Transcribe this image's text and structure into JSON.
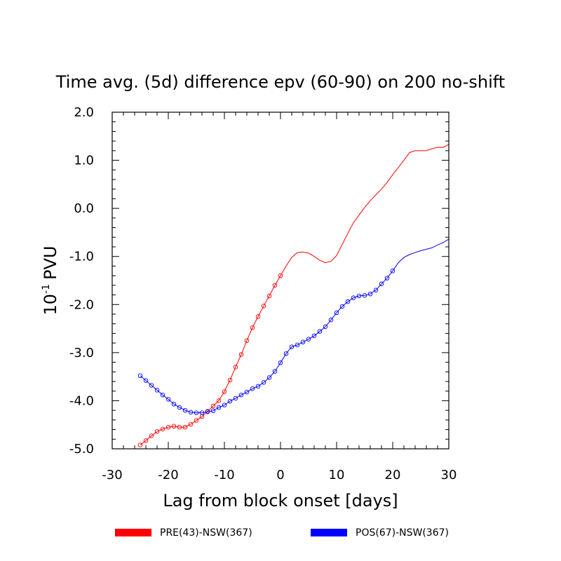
{
  "chart_data": {
    "type": "line",
    "title": "Time avg. (5d)  difference epv (60-90) on 200 no-shift",
    "xlabel": "Lag from block onset [days]",
    "ylabel": "10-1 PVU",
    "ylabel_base": "10",
    "ylabel_exp": "-1",
    "ylabel_unit": "PVU",
    "xlim": [
      -30,
      30
    ],
    "ylim": [
      -5.0,
      2.0
    ],
    "x_ticks": [
      -30,
      -20,
      -10,
      0,
      10,
      20,
      30
    ],
    "x_tick_labels": [
      "-30",
      "-20",
      "-10",
      "0",
      "10",
      "20",
      "30"
    ],
    "y_ticks": [
      -5,
      -4,
      -3,
      -2,
      -1,
      0,
      1,
      2
    ],
    "y_tick_labels": [
      "-5.0",
      "-4.0",
      "-3.0",
      "-2.0",
      "-1.0",
      "0.0",
      "1.0",
      "2.0"
    ],
    "grid": false,
    "legend_position": "bottom",
    "series": [
      {
        "name": "PRE(43)-NSW(367)",
        "color": "#ff0000",
        "marker": "open-circle",
        "marker_x_max": 0,
        "x": [
          -25,
          -24,
          -23,
          -22,
          -21,
          -20,
          -19,
          -18,
          -17,
          -16,
          -15,
          -14,
          -13,
          -12,
          -11,
          -10,
          -9,
          -8,
          -7,
          -6,
          -5,
          -4,
          -3,
          -2,
          -1,
          0,
          1,
          2,
          3,
          4,
          5,
          6,
          7,
          8,
          9,
          10,
          11,
          12,
          13,
          14,
          15,
          16,
          17,
          18,
          19,
          20,
          21,
          22,
          23,
          24,
          25,
          26,
          27,
          28,
          29,
          30
        ],
        "values": [
          -4.92,
          -4.83,
          -4.73,
          -4.64,
          -4.59,
          -4.55,
          -4.53,
          -4.55,
          -4.55,
          -4.49,
          -4.41,
          -4.33,
          -4.22,
          -4.11,
          -4.0,
          -3.81,
          -3.57,
          -3.3,
          -3.04,
          -2.75,
          -2.48,
          -2.25,
          -2.03,
          -1.82,
          -1.6,
          -1.4,
          -1.2,
          -1.02,
          -0.92,
          -0.91,
          -0.93,
          -1.0,
          -1.08,
          -1.13,
          -1.1,
          -0.98,
          -0.75,
          -0.52,
          -0.3,
          -0.14,
          0.02,
          0.16,
          0.28,
          0.4,
          0.54,
          0.7,
          0.85,
          1.0,
          1.16,
          1.2,
          1.2,
          1.2,
          1.24,
          1.27,
          1.27,
          1.33
        ]
      },
      {
        "name": "POS(67)-NSW(367)",
        "color": "#0000ff",
        "marker": "open-circle",
        "marker_x_max": 20,
        "x": [
          -25,
          -24,
          -23,
          -22,
          -21,
          -20,
          -19,
          -18,
          -17,
          -16,
          -15,
          -14,
          -13,
          -12,
          -11,
          -10,
          -9,
          -8,
          -7,
          -6,
          -5,
          -4,
          -3,
          -2,
          -1,
          0,
          1,
          2,
          3,
          4,
          5,
          6,
          7,
          8,
          9,
          10,
          11,
          12,
          13,
          14,
          15,
          16,
          17,
          18,
          19,
          20,
          21,
          22,
          23,
          24,
          25,
          26,
          27,
          28,
          29,
          30
        ],
        "values": [
          -3.48,
          -3.58,
          -3.68,
          -3.78,
          -3.88,
          -3.97,
          -4.07,
          -4.14,
          -4.2,
          -4.24,
          -4.25,
          -4.25,
          -4.23,
          -4.21,
          -4.14,
          -4.09,
          -4.01,
          -3.95,
          -3.88,
          -3.82,
          -3.75,
          -3.7,
          -3.62,
          -3.52,
          -3.39,
          -3.21,
          -3.02,
          -2.88,
          -2.84,
          -2.78,
          -2.72,
          -2.65,
          -2.56,
          -2.46,
          -2.32,
          -2.17,
          -2.04,
          -1.94,
          -1.86,
          -1.82,
          -1.81,
          -1.78,
          -1.7,
          -1.57,
          -1.45,
          -1.3,
          -1.13,
          -1.02,
          -0.96,
          -0.92,
          -0.88,
          -0.85,
          -0.82,
          -0.76,
          -0.71,
          -0.64
        ]
      }
    ]
  }
}
